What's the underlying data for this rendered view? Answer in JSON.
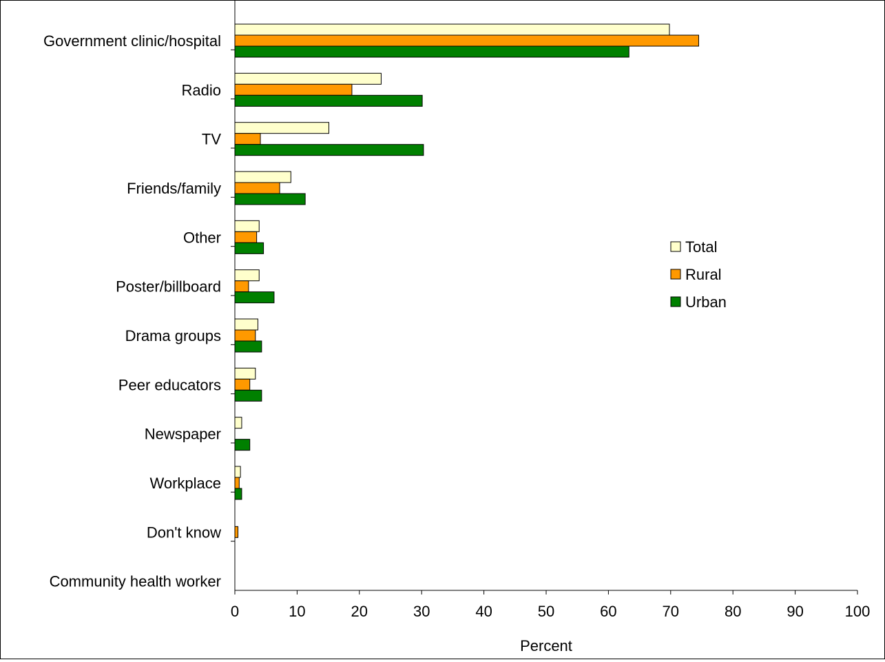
{
  "chart_data": {
    "type": "bar",
    "orientation": "horizontal",
    "title": "",
    "xlabel": "Percent",
    "ylabel": "",
    "xlim": [
      0,
      100
    ],
    "xticks": [
      0,
      10,
      20,
      30,
      40,
      50,
      60,
      70,
      80,
      90,
      100
    ],
    "grid": false,
    "legend_position": "right",
    "categories": [
      "Government clinic/hospital",
      "Radio",
      "TV",
      "Friends/family",
      "Other",
      "Poster/billboard",
      "Drama groups",
      "Peer educators",
      "Newspaper",
      "Workplace",
      "Don't know",
      "Community health worker"
    ],
    "series": [
      {
        "name": "Total",
        "color": "#FFFFCC",
        "values": [
          69.8,
          23.5,
          15.1,
          9.0,
          3.9,
          3.9,
          3.7,
          3.3,
          1.1,
          0.9,
          0.0,
          0.0
        ]
      },
      {
        "name": "Rural",
        "color": "#FF9900",
        "values": [
          74.5,
          18.8,
          4.1,
          7.2,
          3.5,
          2.2,
          3.3,
          2.4,
          0.0,
          0.7,
          0.5,
          0.0
        ]
      },
      {
        "name": "Urban",
        "color": "#008000",
        "values": [
          63.3,
          30.1,
          30.3,
          11.3,
          4.6,
          6.3,
          4.3,
          4.3,
          2.4,
          1.1,
          0.0,
          0.0
        ]
      }
    ]
  }
}
